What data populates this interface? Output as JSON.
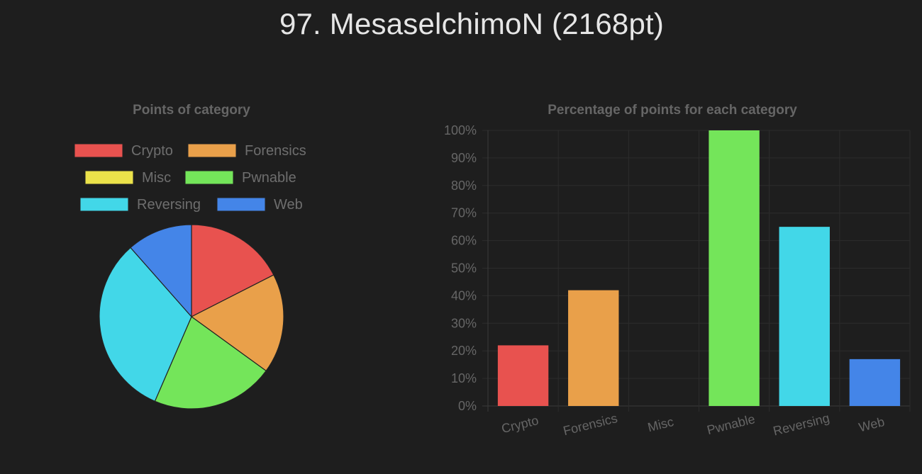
{
  "page": {
    "title": "97. MesaselchimoN (2168pt)",
    "background": "#1e1e1e"
  },
  "chart_data": [
    {
      "type": "pie",
      "title": "Points of category",
      "categories": [
        "Crypto",
        "Forensics",
        "Misc",
        "Pwnable",
        "Reversing",
        "Web"
      ],
      "values": [
        17.5,
        17.5,
        0,
        21.5,
        32,
        11.5
      ],
      "colors": [
        "#e8524f",
        "#e9a04a",
        "#ebe24a",
        "#74e55a",
        "#42d7e8",
        "#4485e8"
      ],
      "legend": "top",
      "border_color": "#222222"
    },
    {
      "type": "bar",
      "title": "Percentage of points for each category",
      "categories": [
        "Crypto",
        "Forensics",
        "Misc",
        "Pwnable",
        "Reversing",
        "Web"
      ],
      "values": [
        22,
        42,
        0,
        100,
        65,
        17
      ],
      "colors": [
        "#e8524f",
        "#e9a04a",
        "#ebe24a",
        "#74e55a",
        "#42d7e8",
        "#4485e8"
      ],
      "ylim": [
        0,
        100
      ],
      "yticks": [
        "0%",
        "10%",
        "20%",
        "30%",
        "40%",
        "50%",
        "60%",
        "70%",
        "80%",
        "90%",
        "100%"
      ],
      "grid": true,
      "legend": "none"
    }
  ]
}
